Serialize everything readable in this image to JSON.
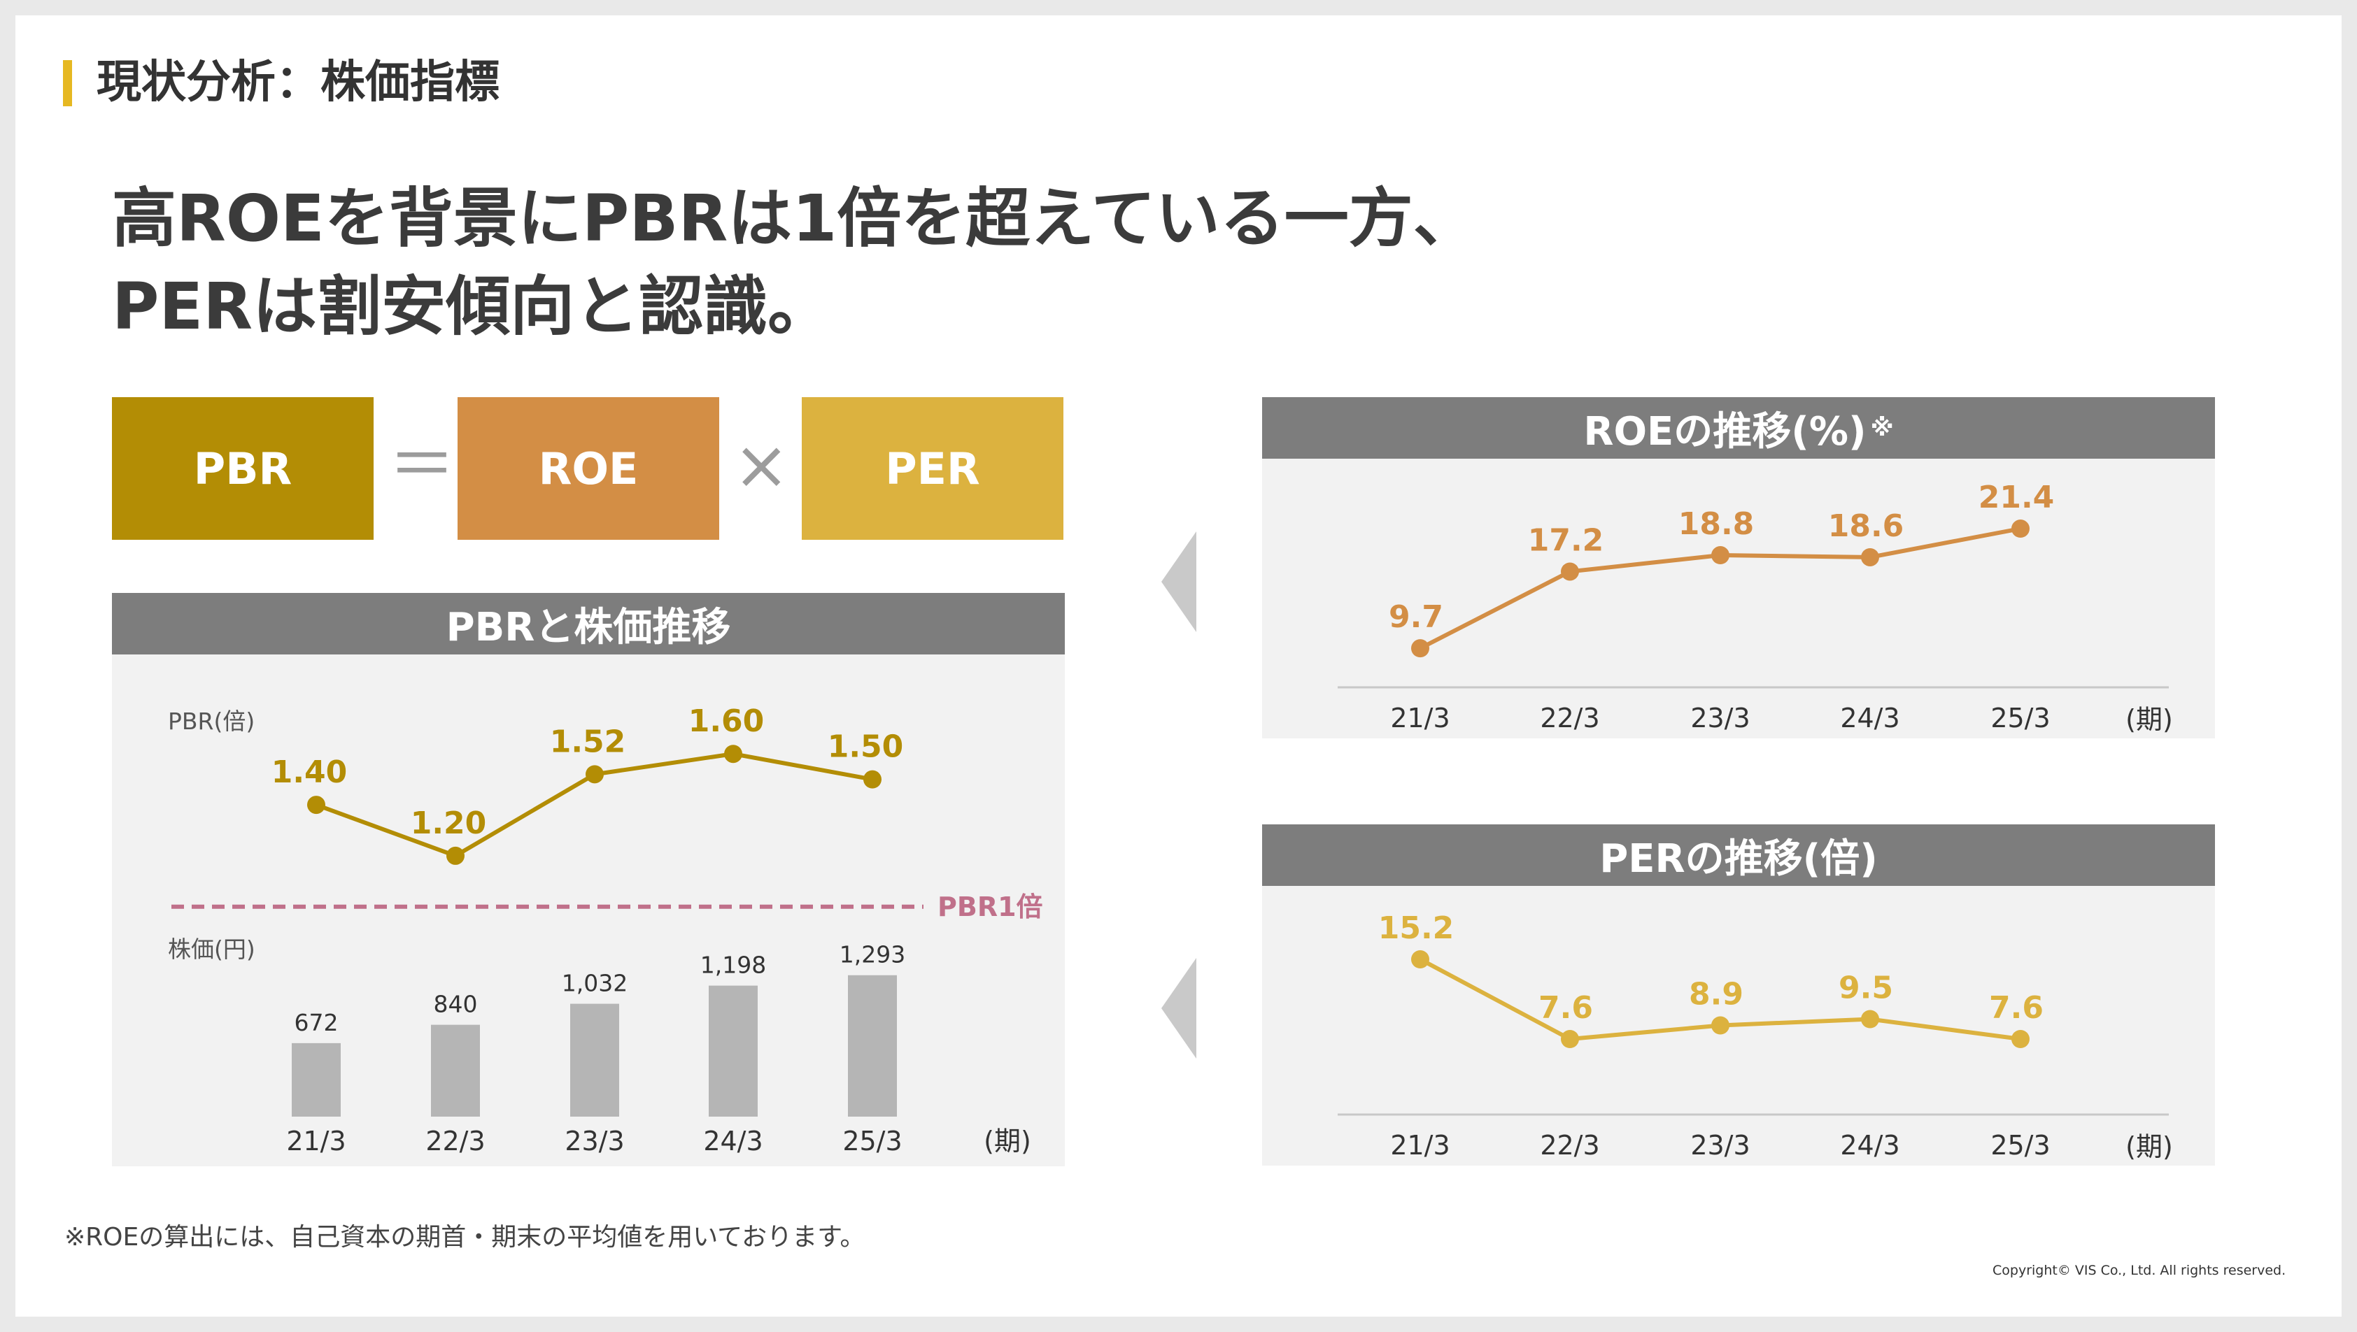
{
  "section_title": "現状分析：株価指標",
  "headline": {
    "line1": "高ROEを背景にPBRは1倍を超えている一方、",
    "line2": "PERは割安傾向と認識。"
  },
  "formula": {
    "pbr": "PBR",
    "equals": "＝",
    "roe": "ROE",
    "times": "×",
    "per": "PER"
  },
  "colors": {
    "pbr": "#b38d05",
    "roe": "#d38e45",
    "per": "#dcb23f",
    "bar": "#b5b5b5",
    "reference": "#c0708a",
    "header_bg": "#7d7d7d",
    "panel_bg": "#f2f2f2",
    "arrow": "#c9c9c9",
    "accent": "#e6b822"
  },
  "chart_data": [
    {
      "type": "line",
      "title": "PBRと株価推移",
      "ylabel": "PBR(倍)",
      "categories": [
        "21/3",
        "22/3",
        "23/3",
        "24/3",
        "25/3"
      ],
      "values": [
        1.4,
        1.2,
        1.52,
        1.6,
        1.5
      ],
      "value_labels": [
        "1.40",
        "1.20",
        "1.52",
        "1.60",
        "1.50"
      ],
      "ylim": [
        0.95,
        1.65
      ],
      "reference_line": {
        "value": 1.0,
        "label": "PBR1倍"
      }
    },
    {
      "type": "bar",
      "title": "PBRと株価推移",
      "ylabel": "株価(円)",
      "xlabel": "(期)",
      "categories": [
        "21/3",
        "22/3",
        "23/3",
        "24/3",
        "25/3"
      ],
      "values": [
        672,
        840,
        1032,
        1198,
        1293
      ],
      "value_labels": [
        "672",
        "840",
        "1,032",
        "1,198",
        "1,293"
      ],
      "ylim": [
        0,
        1400
      ]
    },
    {
      "type": "line",
      "title": "ROEの推移(%)",
      "title_note": "※",
      "xlabel": "(期)",
      "categories": [
        "21/3",
        "22/3",
        "23/3",
        "24/3",
        "25/3"
      ],
      "values": [
        9.7,
        17.2,
        18.8,
        18.6,
        21.4
      ],
      "value_labels": [
        "9.7",
        "17.2",
        "18.8",
        "18.6",
        "21.4"
      ],
      "ylim": [
        8,
        24
      ]
    },
    {
      "type": "line",
      "title": "PERの推移(倍)",
      "xlabel": "(期)",
      "categories": [
        "21/3",
        "22/3",
        "23/3",
        "24/3",
        "25/3"
      ],
      "values": [
        15.2,
        7.6,
        8.9,
        9.5,
        7.6
      ],
      "value_labels": [
        "15.2",
        "7.6",
        "8.9",
        "9.5",
        "7.6"
      ],
      "ylim": [
        4,
        17
      ]
    }
  ],
  "footnote": "※ROEの算出には、自己資本の期首・期末の平均値を用いております。",
  "copyright": "Copyright© VIS Co., Ltd. All rights reserved."
}
